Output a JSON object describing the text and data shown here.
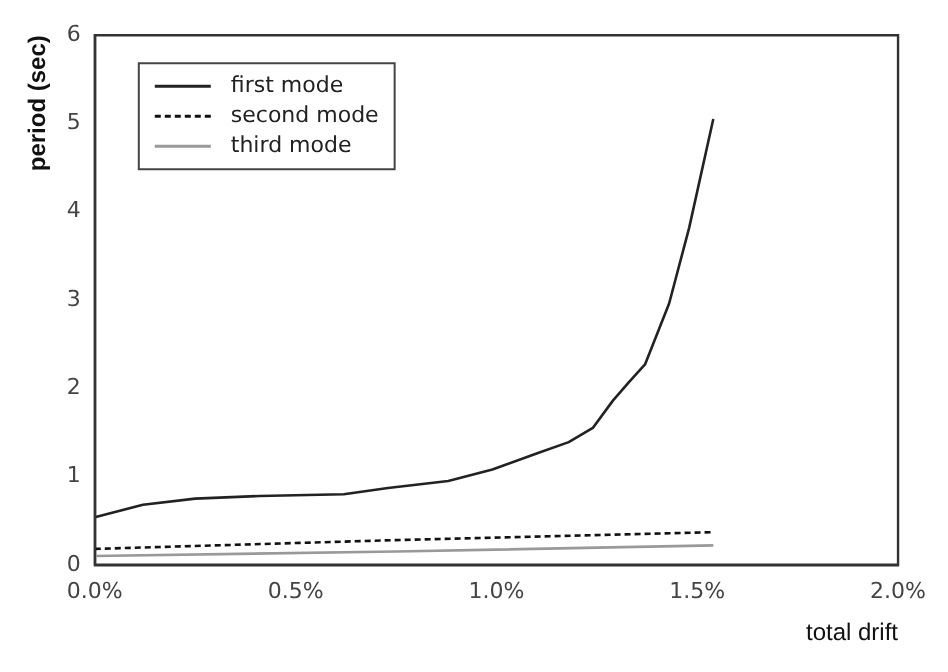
{
  "chart_data": {
    "type": "line",
    "xlabel": "total drift",
    "ylabel": "period (sec)",
    "xlim": [
      0,
      2
    ],
    "xticks": [
      {
        "value": 0,
        "label": "0.0%"
      },
      {
        "value": 0.5,
        "label": "0.5%"
      },
      {
        "value": 1,
        "label": "1.0%"
      },
      {
        "value": 1.5,
        "label": "1.5%"
      },
      {
        "value": 2,
        "label": "2.0%"
      }
    ],
    "ylim": [
      0,
      6
    ],
    "yticks": [
      0,
      1,
      2,
      3,
      4,
      5,
      6
    ],
    "series": [
      {
        "name": "first mode",
        "color": "#222222",
        "line_style": "solid",
        "x": [
          0,
          0.12,
          0.25,
          0.41,
          0.62,
          0.73,
          0.88,
          0.99,
          1.1,
          1.18,
          1.24,
          1.29,
          1.33,
          1.37,
          1.43,
          1.48,
          1.54
        ],
        "values": [
          0.54,
          0.68,
          0.75,
          0.78,
          0.8,
          0.87,
          0.95,
          1.08,
          1.26,
          1.39,
          1.55,
          1.86,
          2.07,
          2.27,
          2.96,
          3.82,
          5.05
        ]
      },
      {
        "name": "second mode",
        "color": "#111111",
        "line_style": "dotted",
        "x": [
          0,
          0.75,
          1.54
        ],
        "values": [
          0.18,
          0.28,
          0.37
        ]
      },
      {
        "name": "third mode",
        "color": "#999999",
        "line_style": "solid",
        "x": [
          0,
          0.75,
          1.54
        ],
        "values": [
          0.1,
          0.15,
          0.22
        ]
      }
    ],
    "legend": "top left",
    "grid": false,
    "marker": "none"
  }
}
